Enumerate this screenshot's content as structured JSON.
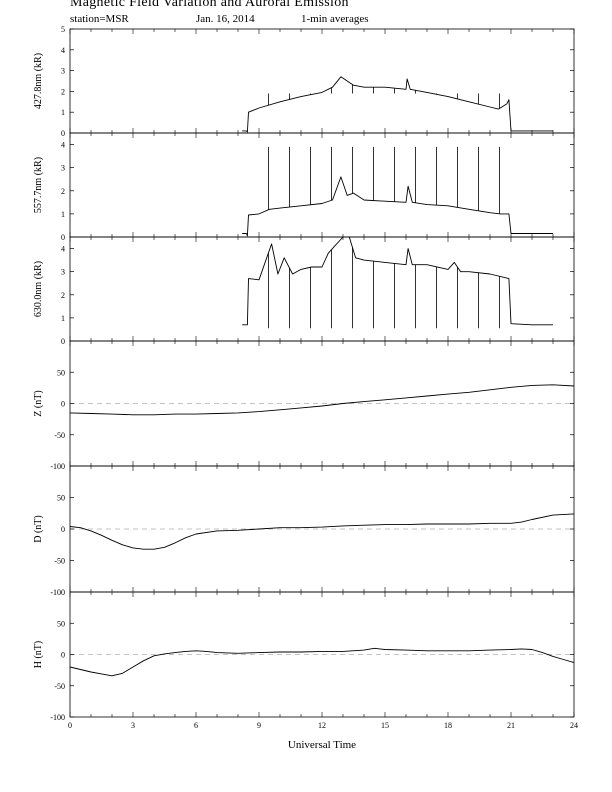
{
  "header": {
    "title": "Magnetic Field Variation and Auroral Emission",
    "station": "station=MSR",
    "date": "Jan. 16, 2014",
    "averaging": "1-min averages"
  },
  "chart_data": [
    {
      "type": "line",
      "ylabel": "427.8nm (kR)",
      "ylim": [
        0,
        5
      ],
      "yticks": [
        0,
        1,
        2,
        3,
        4,
        5
      ],
      "xlim": [
        0,
        24
      ],
      "series": [
        {
          "x": [
            8.2,
            8.4,
            8.45,
            8.5,
            9,
            10,
            11,
            12,
            12.5,
            12.9,
            13.5,
            14,
            15,
            16,
            16.05,
            16.2,
            17,
            18,
            19,
            20,
            20.4,
            20.8,
            20.9,
            21.0,
            22,
            23
          ],
          "y": [
            0.1,
            0.1,
            0.05,
            1.0,
            1.2,
            1.5,
            1.75,
            1.95,
            2.2,
            2.7,
            2.3,
            2.2,
            2.2,
            2.1,
            2.6,
            2.1,
            1.95,
            1.75,
            1.5,
            1.25,
            1.15,
            1.4,
            1.6,
            0.1,
            0.1,
            0.1
          ]
        }
      ],
      "calibration_spikes": {
        "x": [
          9.45,
          10.45,
          11.45,
          12.45,
          13.45,
          14.45,
          15.45,
          16.45,
          17.45,
          18.45,
          19.45,
          20.45
        ],
        "top": 1.9
      }
    },
    {
      "type": "line",
      "ylabel": "557.7nm (kR)",
      "ylim": [
        0,
        4.5
      ],
      "yticks": [
        0,
        1,
        2,
        3,
        4
      ],
      "xlim": [
        0,
        24
      ],
      "series": [
        {
          "x": [
            8.2,
            8.4,
            8.45,
            8.5,
            9,
            9.5,
            10,
            11,
            12,
            12.5,
            12.9,
            13.2,
            13.5,
            14,
            15,
            16,
            16.1,
            16.3,
            17,
            18,
            19,
            20,
            20.5,
            20.9,
            21.0,
            22,
            23
          ],
          "y": [
            0.15,
            0.15,
            0.05,
            0.95,
            1.0,
            1.2,
            1.25,
            1.35,
            1.45,
            1.6,
            2.6,
            1.8,
            1.9,
            1.6,
            1.55,
            1.5,
            2.2,
            1.5,
            1.4,
            1.35,
            1.2,
            1.05,
            1.0,
            1.0,
            0.15,
            0.15,
            0.15
          ]
        }
      ],
      "calibration_spikes": {
        "x": [
          9.45,
          10.45,
          11.45,
          12.45,
          13.45,
          14.45,
          15.45,
          16.45,
          17.45,
          18.45,
          19.45,
          20.45
        ],
        "top": 3.9
      }
    },
    {
      "type": "line",
      "ylabel": "630.0nm (kR)",
      "ylim": [
        0,
        4.5
      ],
      "yticks": [
        0,
        1,
        2,
        3,
        4
      ],
      "xlim": [
        0,
        24
      ],
      "series": [
        {
          "x": [
            8.2,
            8.4,
            8.45,
            8.5,
            9,
            9.6,
            9.9,
            10.2,
            10.6,
            11,
            11.5,
            12,
            12.3,
            12.6,
            13,
            13.3,
            13.6,
            14,
            15,
            16,
            16.1,
            16.3,
            17,
            18,
            18.3,
            18.6,
            19,
            20,
            20.9,
            21.0,
            22,
            23
          ],
          "y": [
            0.7,
            0.7,
            0.7,
            2.7,
            2.65,
            4.2,
            2.9,
            3.6,
            2.9,
            3.1,
            3.2,
            3.2,
            3.8,
            4.1,
            4.5,
            4.5,
            3.6,
            3.5,
            3.4,
            3.3,
            4.0,
            3.3,
            3.3,
            3.1,
            3.4,
            3.0,
            3.0,
            2.9,
            2.7,
            0.75,
            0.7,
            0.7
          ]
        }
      ],
      "calibration_spikes": {
        "x": [
          9.45,
          10.45,
          11.45,
          12.45,
          13.45,
          14.45,
          15.45,
          16.45,
          17.45,
          18.45,
          19.45,
          20.45
        ],
        "bottom": 0.55
      }
    },
    {
      "type": "line",
      "ylabel": "Z (nT)",
      "ylim": [
        -100,
        100
      ],
      "yticks": [
        -100,
        -50,
        0,
        50
      ],
      "xlim": [
        0,
        24
      ],
      "reference_line": 0,
      "series": [
        {
          "x": [
            0,
            1,
            2,
            3,
            4,
            5,
            6,
            7,
            8,
            9,
            10,
            11,
            12,
            13,
            14,
            15,
            16,
            17,
            18,
            19,
            20,
            21,
            22,
            23,
            24
          ],
          "y": [
            -15,
            -16,
            -17,
            -18,
            -18,
            -17,
            -17,
            -16,
            -15,
            -13,
            -10,
            -7,
            -4,
            0,
            3,
            6,
            9,
            12,
            15,
            18,
            22,
            26,
            29,
            30,
            28
          ]
        }
      ]
    },
    {
      "type": "line",
      "ylabel": "D (nT)",
      "ylim": [
        -100,
        100
      ],
      "yticks": [
        -100,
        -50,
        0,
        50
      ],
      "xlim": [
        0,
        24
      ],
      "reference_line": 0,
      "series": [
        {
          "x": [
            0,
            0.5,
            1,
            1.5,
            2,
            2.5,
            3,
            3.5,
            4,
            4.5,
            5,
            5.5,
            6,
            7,
            8,
            9,
            10,
            11,
            12,
            13,
            14,
            15,
            16,
            17,
            18,
            19,
            20,
            21,
            21.5,
            22,
            23,
            24
          ],
          "y": [
            4,
            2,
            -3,
            -10,
            -18,
            -25,
            -30,
            -32,
            -32,
            -29,
            -22,
            -14,
            -8,
            -3,
            -2,
            0,
            2,
            2,
            3,
            5,
            6,
            7,
            7,
            8,
            8,
            8,
            9,
            9,
            11,
            15,
            22,
            24
          ]
        }
      ]
    },
    {
      "type": "line",
      "ylabel": "H (nT)",
      "ylim": [
        -100,
        100
      ],
      "yticks": [
        -100,
        -50,
        0,
        50
      ],
      "xlim": [
        0,
        24
      ],
      "reference_line": 0,
      "xlabel": "Universal Time",
      "xticks": [
        0,
        3,
        6,
        9,
        12,
        15,
        18,
        21,
        24
      ],
      "series": [
        {
          "x": [
            0,
            0.5,
            1,
            1.5,
            2,
            2.5,
            3,
            3.5,
            4,
            4.5,
            5,
            5.5,
            6,
            6.5,
            7,
            8,
            9,
            10,
            11,
            12,
            13,
            14,
            14.5,
            15,
            16,
            17,
            18,
            19,
            20,
            21,
            21.5,
            22,
            22.5,
            23,
            23.5,
            24
          ],
          "y": [
            -20,
            -24,
            -28,
            -31,
            -34,
            -30,
            -20,
            -10,
            -2,
            1,
            3,
            5,
            6,
            5,
            3,
            2,
            3,
            4,
            4,
            5,
            5,
            7,
            10,
            8,
            7,
            6,
            6,
            6,
            7,
            8,
            9,
            8,
            3,
            -3,
            -8,
            -13
          ]
        }
      ]
    }
  ]
}
